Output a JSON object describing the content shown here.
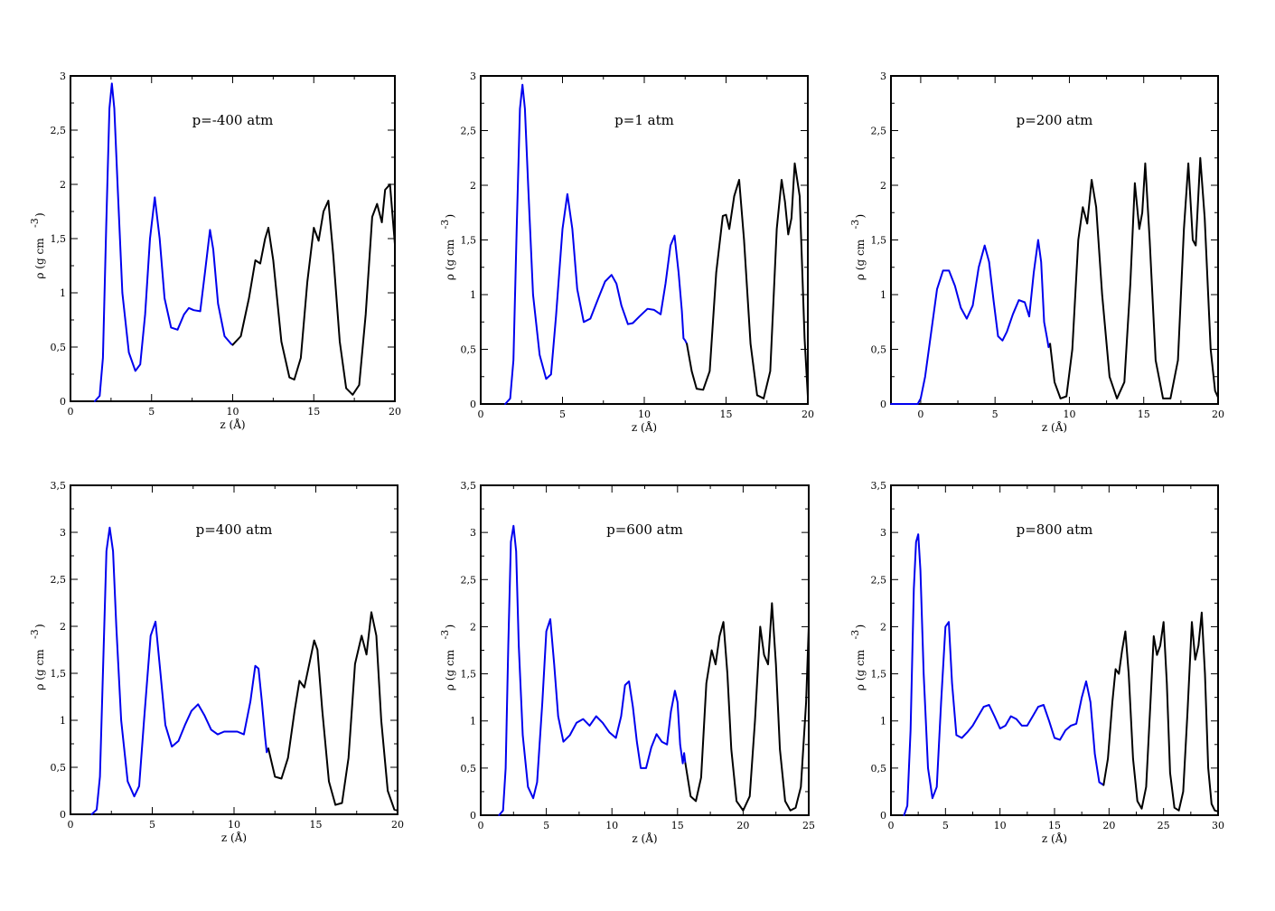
{
  "colors": {
    "series_a": "#0000ee",
    "series_b": "#000000",
    "frame": "#000000",
    "background": "#ffffff"
  },
  "chart_data": [
    {
      "type": "line",
      "annotation": "p=-400 atm",
      "xlabel": "z (Å)",
      "ylabel": "ρ (g cm",
      "xlim": [
        0,
        20
      ],
      "ylim": [
        0,
        3
      ],
      "xticks": [
        0,
        5,
        10,
        15,
        20
      ],
      "xtick_labels": [
        "0",
        "5",
        "10",
        "15",
        "20"
      ],
      "yticks": [
        0,
        0.5,
        1,
        1.5,
        2,
        2.5,
        3
      ],
      "ytick_labels": [
        "0",
        "0,5",
        "1",
        "1,5",
        "2",
        "2,5",
        "3"
      ],
      "grid": false,
      "series": [
        {
          "color": "#0000ee",
          "x": [
            1.5,
            1.8,
            2.0,
            2.2,
            2.4,
            2.55,
            2.7,
            2.9,
            3.2,
            3.6,
            4.0,
            4.3,
            4.6,
            4.9,
            5.2,
            5.5,
            5.8,
            6.2,
            6.6,
            7.0,
            7.3,
            7.6,
            8.0,
            8.3,
            8.6,
            8.8,
            9.1,
            9.5,
            9.9,
            10.0
          ],
          "y": [
            0,
            0.05,
            0.4,
            1.6,
            2.7,
            2.93,
            2.7,
            2.0,
            1.0,
            0.45,
            0.28,
            0.34,
            0.8,
            1.5,
            1.88,
            1.5,
            0.95,
            0.68,
            0.66,
            0.8,
            0.86,
            0.84,
            0.83,
            1.2,
            1.58,
            1.4,
            0.9,
            0.6,
            0.53,
            0.52
          ]
        },
        {
          "color": "#000000",
          "x": [
            10.0,
            10.5,
            11.0,
            11.4,
            11.7,
            12.0,
            12.2,
            12.5,
            13.0,
            13.5,
            13.8,
            14.2,
            14.6,
            15.0,
            15.3,
            15.6,
            15.9,
            16.2,
            16.6,
            17.0,
            17.4,
            17.8,
            18.2,
            18.6,
            18.9,
            19.2,
            19.4,
            19.7,
            20.0
          ],
          "y": [
            0.52,
            0.6,
            0.95,
            1.3,
            1.27,
            1.5,
            1.6,
            1.3,
            0.55,
            0.22,
            0.2,
            0.4,
            1.1,
            1.6,
            1.48,
            1.75,
            1.85,
            1.35,
            0.55,
            0.12,
            0.06,
            0.15,
            0.8,
            1.7,
            1.82,
            1.65,
            1.95,
            2.0,
            1.45
          ]
        }
      ]
    },
    {
      "type": "line",
      "annotation": "p=1 atm",
      "xlabel": "z (Å)",
      "ylabel": "ρ (g cm",
      "xlim": [
        0,
        20
      ],
      "ylim": [
        0,
        3
      ],
      "xticks": [
        0,
        5,
        10,
        15,
        20
      ],
      "xtick_labels": [
        "0",
        "5",
        "10",
        "15",
        "20"
      ],
      "yticks": [
        0,
        0.5,
        1,
        1.5,
        2,
        2.5,
        3
      ],
      "ytick_labels": [
        "0",
        "0,5",
        "1",
        "1,5",
        "2",
        "2,5",
        "3"
      ],
      "grid": false,
      "series": [
        {
          "color": "#0000ee",
          "x": [
            1.5,
            1.8,
            2.0,
            2.2,
            2.4,
            2.55,
            2.7,
            2.9,
            3.2,
            3.6,
            4.0,
            4.3,
            4.6,
            5.0,
            5.3,
            5.6,
            5.9,
            6.3,
            6.7,
            7.2,
            7.6,
            8.0,
            8.3,
            8.6,
            9.0,
            9.3,
            9.7,
            10.2,
            10.6,
            11.0,
            11.3,
            11.6,
            11.85,
            12.1,
            12.3,
            12.4,
            12.5,
            12.6
          ],
          "y": [
            0,
            0.05,
            0.4,
            1.6,
            2.7,
            2.92,
            2.7,
            2.0,
            1.0,
            0.45,
            0.23,
            0.27,
            0.8,
            1.6,
            1.92,
            1.6,
            1.05,
            0.75,
            0.78,
            0.97,
            1.12,
            1.18,
            1.1,
            0.9,
            0.73,
            0.74,
            0.8,
            0.87,
            0.86,
            0.82,
            1.1,
            1.45,
            1.54,
            1.2,
            0.85,
            0.6,
            0.58,
            0.55
          ]
        },
        {
          "color": "#000000",
          "x": [
            12.6,
            12.9,
            13.2,
            13.6,
            14.0,
            14.4,
            14.8,
            15.0,
            15.2,
            15.5,
            15.8,
            16.1,
            16.5,
            16.9,
            17.3,
            17.7,
            18.1,
            18.4,
            18.6,
            18.8,
            19.0,
            19.2,
            19.5,
            19.8,
            20.0
          ],
          "y": [
            0.55,
            0.3,
            0.14,
            0.13,
            0.3,
            1.2,
            1.72,
            1.73,
            1.6,
            1.9,
            2.05,
            1.5,
            0.55,
            0.08,
            0.05,
            0.3,
            1.6,
            2.05,
            1.85,
            1.55,
            1.7,
            2.2,
            1.9,
            0.6,
            0.07
          ]
        }
      ]
    },
    {
      "type": "line",
      "annotation": "p=200 atm",
      "xlabel": "z (Å)",
      "ylabel": "ρ (g cm",
      "xlim": [
        -2,
        20
      ],
      "ylim": [
        0,
        3
      ],
      "xticks": [
        0,
        5,
        10,
        15,
        20
      ],
      "xtick_labels": [
        "0",
        "5",
        "10",
        "15",
        "20"
      ],
      "yticks": [
        0,
        0.5,
        1,
        1.5,
        2,
        2.5,
        3
      ],
      "ytick_labels": [
        "0",
        "0,5",
        "1",
        "1,5",
        "2",
        "2,5",
        "3"
      ],
      "grid": false,
      "series": [
        {
          "color": "#0000ee",
          "x": [
            -2.0,
            -0.2,
            0.0,
            0.3,
            0.7,
            1.1,
            1.5,
            1.9,
            2.3,
            2.7,
            3.1,
            3.5,
            3.9,
            4.3,
            4.6,
            4.9,
            5.2,
            5.5,
            5.8,
            6.2,
            6.6,
            7.0,
            7.3,
            7.6,
            7.9,
            8.1,
            8.3,
            8.5,
            8.6,
            8.7
          ],
          "y": [
            0,
            0,
            0.05,
            0.25,
            0.65,
            1.05,
            1.22,
            1.22,
            1.08,
            0.88,
            0.78,
            0.9,
            1.25,
            1.45,
            1.3,
            0.95,
            0.62,
            0.58,
            0.66,
            0.82,
            0.95,
            0.93,
            0.8,
            1.2,
            1.5,
            1.3,
            0.75,
            0.6,
            0.52,
            0.55
          ]
        },
        {
          "color": "#000000",
          "x": [
            8.7,
            9.0,
            9.4,
            9.8,
            10.2,
            10.6,
            10.9,
            11.2,
            11.5,
            11.8,
            12.2,
            12.7,
            13.2,
            13.7,
            14.1,
            14.4,
            14.7,
            14.9,
            15.1,
            15.4,
            15.8,
            16.3,
            16.8,
            17.3,
            17.7,
            18.0,
            18.3,
            18.5,
            18.8,
            19.1,
            19.5,
            19.8,
            20.0
          ],
          "y": [
            0.55,
            0.2,
            0.05,
            0.07,
            0.5,
            1.5,
            1.8,
            1.65,
            2.05,
            1.8,
            1.0,
            0.25,
            0.05,
            0.2,
            1.1,
            2.02,
            1.6,
            1.75,
            2.2,
            1.5,
            0.4,
            0.05,
            0.05,
            0.4,
            1.6,
            2.2,
            1.5,
            1.45,
            2.25,
            1.7,
            0.5,
            0.12,
            0.06
          ]
        }
      ]
    },
    {
      "type": "line",
      "annotation": "p=400 atm",
      "xlabel": "z (Å)",
      "ylabel": "ρ (g cm",
      "xlim": [
        0,
        20
      ],
      "ylim": [
        0,
        3.5
      ],
      "xticks": [
        0,
        5,
        10,
        15,
        20
      ],
      "xtick_labels": [
        "0",
        "5",
        "10",
        "15",
        "20"
      ],
      "yticks": [
        0,
        0.5,
        1,
        1.5,
        2,
        2.5,
        3,
        3.5
      ],
      "ytick_labels": [
        "0",
        "0,5",
        "1",
        "1,5",
        "2",
        "2,5",
        "3",
        "3,5"
      ],
      "grid": false,
      "series": [
        {
          "color": "#0000ee",
          "x": [
            1.3,
            1.6,
            1.8,
            2.0,
            2.2,
            2.4,
            2.6,
            2.8,
            3.1,
            3.5,
            3.9,
            4.2,
            4.5,
            4.9,
            5.2,
            5.5,
            5.8,
            6.2,
            6.6,
            7.0,
            7.4,
            7.8,
            8.2,
            8.6,
            9.0,
            9.4,
            9.8,
            10.2,
            10.6,
            11.0,
            11.3,
            11.5,
            11.7,
            11.9,
            12.0,
            12.1
          ],
          "y": [
            0,
            0.05,
            0.4,
            1.6,
            2.8,
            3.05,
            2.8,
            2.0,
            1.0,
            0.35,
            0.19,
            0.3,
            1.0,
            1.9,
            2.05,
            1.5,
            0.95,
            0.72,
            0.78,
            0.95,
            1.1,
            1.17,
            1.05,
            0.9,
            0.85,
            0.88,
            0.88,
            0.88,
            0.85,
            1.2,
            1.58,
            1.55,
            1.2,
            0.82,
            0.66,
            0.7
          ]
        },
        {
          "color": "#000000",
          "x": [
            12.1,
            12.5,
            12.9,
            13.3,
            13.7,
            14.0,
            14.3,
            14.6,
            14.9,
            15.1,
            15.4,
            15.8,
            16.2,
            16.6,
            17.0,
            17.4,
            17.8,
            18.1,
            18.4,
            18.7,
            19.0,
            19.4,
            19.8,
            20.0
          ],
          "y": [
            0.7,
            0.4,
            0.38,
            0.6,
            1.1,
            1.42,
            1.35,
            1.6,
            1.85,
            1.75,
            1.1,
            0.35,
            0.1,
            0.12,
            0.6,
            1.6,
            1.9,
            1.7,
            2.15,
            1.9,
            1.0,
            0.25,
            0.05,
            0.04
          ]
        }
      ]
    },
    {
      "type": "line",
      "annotation": "p=600 atm",
      "xlabel": "z (Å)",
      "ylabel": "ρ (g cm",
      "xlim": [
        0,
        25
      ],
      "ylim": [
        0,
        3.5
      ],
      "xticks": [
        0,
        5,
        10,
        15,
        20,
        25
      ],
      "xtick_labels": [
        "0",
        "5",
        "10",
        "15",
        "20",
        "25"
      ],
      "yticks": [
        0,
        0.5,
        1,
        1.5,
        2,
        2.5,
        3,
        3.5
      ],
      "ytick_labels": [
        "0",
        "0,5",
        "1",
        "1,5",
        "2",
        "2,5",
        "3",
        "3,5"
      ],
      "grid": false,
      "series": [
        {
          "color": "#0000ee",
          "x": [
            1.4,
            1.7,
            1.9,
            2.1,
            2.3,
            2.5,
            2.7,
            2.9,
            3.2,
            3.6,
            4.0,
            4.3,
            4.7,
            5.0,
            5.3,
            5.6,
            5.9,
            6.3,
            6.8,
            7.3,
            7.8,
            8.3,
            8.8,
            9.3,
            9.8,
            10.3,
            10.7,
            11.0,
            11.3,
            11.6,
            11.9,
            12.2,
            12.6,
            13.0,
            13.4,
            13.8,
            14.2,
            14.5,
            14.8,
            15.0,
            15.2,
            15.4,
            15.5,
            15.6
          ],
          "y": [
            0,
            0.05,
            0.5,
            1.8,
            2.9,
            3.07,
            2.8,
            1.8,
            0.85,
            0.3,
            0.18,
            0.35,
            1.2,
            1.95,
            2.08,
            1.6,
            1.05,
            0.78,
            0.85,
            0.98,
            1.02,
            0.95,
            1.05,
            0.98,
            0.88,
            0.82,
            1.05,
            1.38,
            1.42,
            1.15,
            0.78,
            0.5,
            0.5,
            0.72,
            0.86,
            0.78,
            0.75,
            1.1,
            1.32,
            1.2,
            0.75,
            0.55,
            0.66,
            0.55
          ]
        },
        {
          "color": "#000000",
          "x": [
            15.6,
            16.0,
            16.4,
            16.8,
            17.2,
            17.6,
            17.9,
            18.2,
            18.5,
            18.8,
            19.1,
            19.5,
            20.0,
            20.5,
            20.9,
            21.3,
            21.6,
            21.9,
            22.2,
            22.5,
            22.8,
            23.2,
            23.6,
            24.0,
            24.4,
            24.8,
            25.0
          ],
          "y": [
            0.55,
            0.2,
            0.15,
            0.4,
            1.4,
            1.75,
            1.6,
            1.9,
            2.05,
            1.5,
            0.7,
            0.15,
            0.05,
            0.2,
            1.0,
            2.0,
            1.7,
            1.6,
            2.25,
            1.6,
            0.7,
            0.15,
            0.05,
            0.08,
            0.3,
            1.2,
            2.0
          ]
        }
      ]
    },
    {
      "type": "line",
      "annotation": "p=800 atm",
      "xlabel": "z (Å)",
      "ylabel": "ρ (g cm",
      "xlim": [
        0,
        30
      ],
      "ylim": [
        0,
        3.5
      ],
      "xticks": [
        0,
        5,
        10,
        15,
        20,
        25,
        30
      ],
      "xtick_labels": [
        "0",
        "5",
        "10",
        "15",
        "20",
        "25",
        "30"
      ],
      "yticks": [
        0,
        0.5,
        1,
        1.5,
        2,
        2.5,
        3,
        3.5
      ],
      "ytick_labels": [
        "0",
        "0,5",
        "1",
        "1,5",
        "2",
        "2,5",
        "3",
        "3,5"
      ],
      "grid": false,
      "series": [
        {
          "color": "#0000ee",
          "x": [
            1.2,
            1.5,
            1.8,
            2.1,
            2.3,
            2.5,
            2.7,
            3.0,
            3.4,
            3.8,
            4.2,
            4.6,
            5.0,
            5.3,
            5.6,
            6.0,
            6.5,
            7.0,
            7.5,
            8.0,
            8.5,
            9.0,
            9.5,
            10.0,
            10.5,
            11.0,
            11.5,
            12.0,
            12.5,
            13.0,
            13.5,
            14.0,
            14.5,
            15.0,
            15.5,
            16.0,
            16.5,
            17.0,
            17.5,
            17.9,
            18.3,
            18.7,
            19.1,
            19.5
          ],
          "y": [
            0,
            0.1,
            0.9,
            2.4,
            2.9,
            2.98,
            2.6,
            1.5,
            0.5,
            0.18,
            0.3,
            1.2,
            2.0,
            2.05,
            1.4,
            0.85,
            0.82,
            0.88,
            0.95,
            1.05,
            1.15,
            1.17,
            1.05,
            0.92,
            0.95,
            1.05,
            1.02,
            0.95,
            0.95,
            1.05,
            1.15,
            1.17,
            1.0,
            0.82,
            0.8,
            0.9,
            0.95,
            0.97,
            1.25,
            1.42,
            1.2,
            0.65,
            0.35,
            0.32
          ]
        },
        {
          "color": "#000000",
          "x": [
            19.5,
            19.9,
            20.3,
            20.6,
            20.9,
            21.2,
            21.5,
            21.8,
            22.2,
            22.6,
            23.0,
            23.4,
            23.8,
            24.1,
            24.4,
            24.7,
            25.0,
            25.3,
            25.6,
            26.0,
            26.4,
            26.8,
            27.2,
            27.6,
            27.9,
            28.2,
            28.5,
            28.8,
            29.1,
            29.4,
            29.7,
            30.0
          ],
          "y": [
            0.32,
            0.6,
            1.2,
            1.55,
            1.5,
            1.75,
            1.95,
            1.5,
            0.6,
            0.15,
            0.07,
            0.3,
            1.2,
            1.9,
            1.7,
            1.8,
            2.05,
            1.4,
            0.45,
            0.08,
            0.05,
            0.25,
            1.1,
            2.05,
            1.65,
            1.8,
            2.15,
            1.5,
            0.5,
            0.12,
            0.05,
            0.04
          ]
        }
      ]
    }
  ]
}
